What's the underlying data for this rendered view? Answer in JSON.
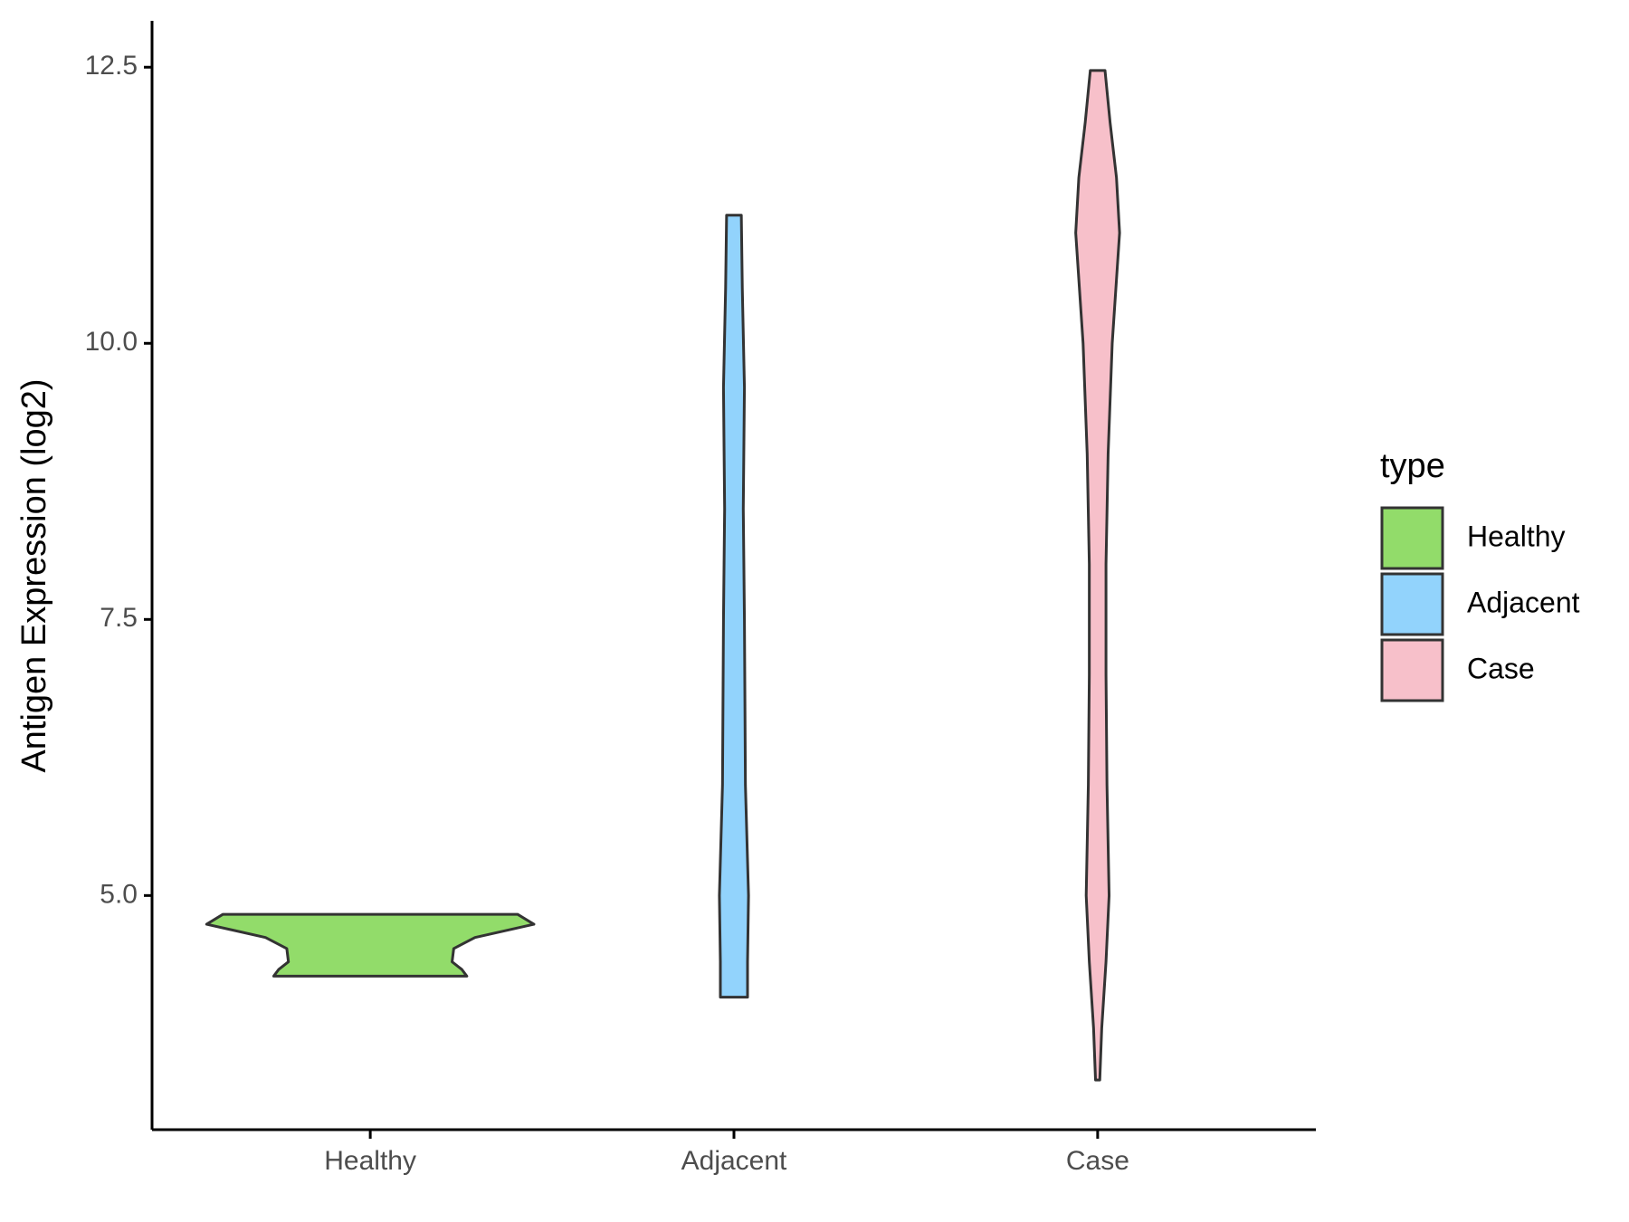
{
  "chart_data": {
    "type": "violin",
    "y_label": "Antigen Expression (log2)",
    "legend_title": "type",
    "legend_position": "right",
    "categories": [
      "Healthy",
      "Adjacent",
      "Case"
    ],
    "ylim": [
      2.88,
      12.92
    ],
    "yticks": [
      {
        "value": 5,
        "label": "5.0"
      },
      7.5,
      {
        "value": 10,
        "label": "10.0"
      },
      12.5
    ],
    "series": [
      {
        "name": "Healthy",
        "color": "#92dc6a",
        "y": [
          4.83,
          4.74,
          4.62,
          4.52,
          4.4,
          4.33,
          4.27
        ],
        "density": [
          0.9,
          1.0,
          0.64,
          0.51,
          0.5,
          0.56,
          0.59
        ]
      },
      {
        "name": "Adjacent",
        "color": "#92d3fc",
        "y": [
          11.16,
          10.5,
          9.6,
          8.5,
          7.5,
          6.0,
          5.0,
          4.4,
          4.08
        ],
        "density": [
          0.045,
          0.051,
          0.064,
          0.057,
          0.064,
          0.07,
          0.089,
          0.083,
          0.083
        ]
      },
      {
        "name": "Case",
        "color": "#f7c0ca",
        "y": [
          12.47,
          12.0,
          11.5,
          11.0,
          10.0,
          9.0,
          8.0,
          7.0,
          6.0,
          5.0,
          4.4,
          3.8,
          3.33
        ],
        "density": [
          0.045,
          0.076,
          0.115,
          0.134,
          0.089,
          0.064,
          0.051,
          0.051,
          0.057,
          0.07,
          0.051,
          0.025,
          0.013
        ]
      }
    ]
  }
}
